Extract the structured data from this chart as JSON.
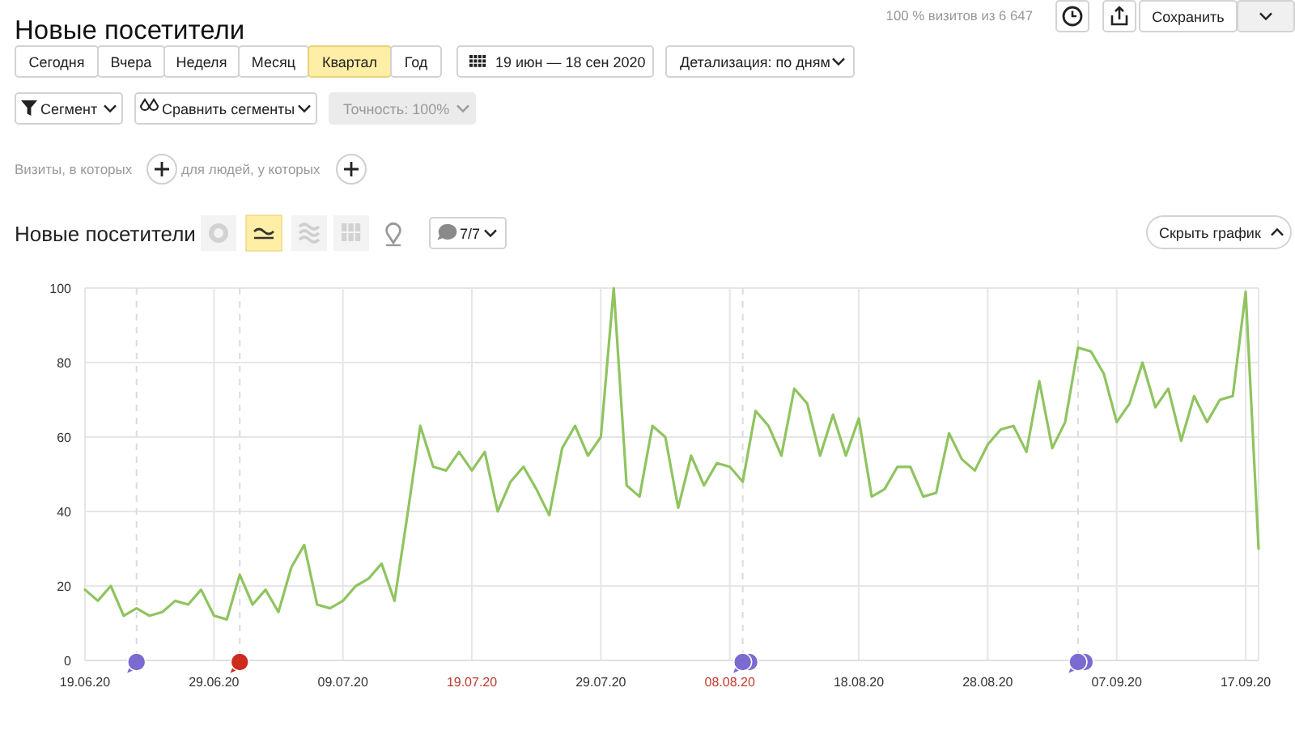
{
  "chart_data": {
    "type": "line",
    "title": "Новые посетители",
    "annotations": [
      "100 % визитов из 6 647",
      "Сохранить",
      "Сегодня",
      "Вчера",
      "Неделя",
      "Месяц",
      "Квартал",
      "Год",
      "19 июн — 18 сен 2020",
      "Детализация: по дням",
      "Сегмент",
      "Сравнить сегменты",
      "Точность: 100%",
      "Визиты, в которых",
      "для людей, у которых",
      "Новые посетители",
      "7/7",
      "Скрыть график"
    ],
    "x": [
      "2020-06-19",
      "2020-06-20",
      "2020-06-21",
      "2020-06-22",
      "2020-06-23",
      "2020-06-24",
      "2020-06-25",
      "2020-06-26",
      "2020-06-27",
      "2020-06-28",
      "2020-06-29",
      "2020-06-30",
      "2020-07-01",
      "2020-07-02",
      "2020-07-03",
      "2020-07-04",
      "2020-07-05",
      "2020-07-06",
      "2020-07-07",
      "2020-07-08",
      "2020-07-09",
      "2020-07-10",
      "2020-07-11",
      "2020-07-12",
      "2020-07-13",
      "2020-07-14",
      "2020-07-15",
      "2020-07-16",
      "2020-07-17",
      "2020-07-18",
      "2020-07-19",
      "2020-07-20",
      "2020-07-21",
      "2020-07-22",
      "2020-07-23",
      "2020-07-24",
      "2020-07-25",
      "2020-07-26",
      "2020-07-27",
      "2020-07-28",
      "2020-07-29",
      "2020-07-30",
      "2020-07-31",
      "2020-08-01",
      "2020-08-02",
      "2020-08-03",
      "2020-08-04",
      "2020-08-05",
      "2020-08-06",
      "2020-08-07",
      "2020-08-08",
      "2020-08-09",
      "2020-08-10",
      "2020-08-11",
      "2020-08-12",
      "2020-08-13",
      "2020-08-14",
      "2020-08-15",
      "2020-08-16",
      "2020-08-17",
      "2020-08-18",
      "2020-08-19",
      "2020-08-20",
      "2020-08-21",
      "2020-08-22",
      "2020-08-23",
      "2020-08-24",
      "2020-08-25",
      "2020-08-26",
      "2020-08-27",
      "2020-08-28",
      "2020-08-29",
      "2020-08-30",
      "2020-08-31",
      "2020-09-01",
      "2020-09-02",
      "2020-09-03",
      "2020-09-04",
      "2020-09-05",
      "2020-09-06",
      "2020-09-07",
      "2020-09-08",
      "2020-09-09",
      "2020-09-10",
      "2020-09-11",
      "2020-09-12",
      "2020-09-13",
      "2020-09-14",
      "2020-09-15",
      "2020-09-16",
      "2020-09-17",
      "2020-09-18"
    ],
    "values": [
      19,
      16,
      20,
      12,
      14,
      12,
      13,
      16,
      15,
      19,
      12,
      11,
      23,
      15,
      19,
      13,
      25,
      31,
      15,
      14,
      16,
      20,
      22,
      26,
      16,
      39,
      63,
      52,
      51,
      56,
      51,
      56,
      40,
      48,
      52,
      46,
      39,
      57,
      63,
      55,
      60,
      100,
      47,
      44,
      63,
      60,
      41,
      55,
      47,
      53,
      52,
      48,
      67,
      63,
      55,
      73,
      69,
      55,
      66,
      55,
      65,
      44,
      46,
      52,
      52,
      44,
      45,
      61,
      54,
      51,
      58,
      62,
      63,
      56,
      75,
      57,
      64,
      84,
      83,
      77,
      64,
      69,
      80,
      68,
      73,
      59,
      71,
      64,
      70,
      71,
      99,
      30
    ],
    "color": "#8fc45f",
    "xlim": [
      "2020-06-19",
      "2020-09-18"
    ],
    "xticks": [
      {
        "value": "2020-06-19",
        "label": "19.06.20"
      },
      {
        "value": "2020-06-29",
        "label": "29.06.20"
      },
      {
        "value": "2020-07-09",
        "label": "09.07.20"
      },
      {
        "value": "2020-07-19",
        "label": "19.07.20"
      },
      {
        "value": "2020-07-29",
        "label": "29.07.20"
      },
      {
        "value": "2020-08-08",
        "label": "08.08.20"
      },
      {
        "value": "2020-08-18",
        "label": "18.08.20"
      },
      {
        "value": "2020-08-28",
        "label": "28.08.20"
      },
      {
        "value": "2020-09-07",
        "label": "07.09.20"
      },
      {
        "value": "2020-09-17",
        "label": "17.09.20"
      }
    ],
    "ylim": [
      0,
      100
    ],
    "yticks": [
      0,
      20,
      40,
      60,
      80,
      100
    ],
    "grid": true,
    "ref_lines": [
      {
        "axis": "x",
        "value": "2020-06-23",
        "color": "#dcdcdc",
        "line_style": "dashed"
      },
      {
        "axis": "x",
        "value": "2020-07-01",
        "color": "#dcdcdc",
        "line_style": "dashed"
      },
      {
        "axis": "x",
        "value": "2020-08-09",
        "color": "#dcdcdc",
        "line_style": "dashed"
      },
      {
        "axis": "x",
        "value": "2020-09-04",
        "color": "#dcdcdc",
        "line_style": "dashed"
      }
    ]
  }
}
